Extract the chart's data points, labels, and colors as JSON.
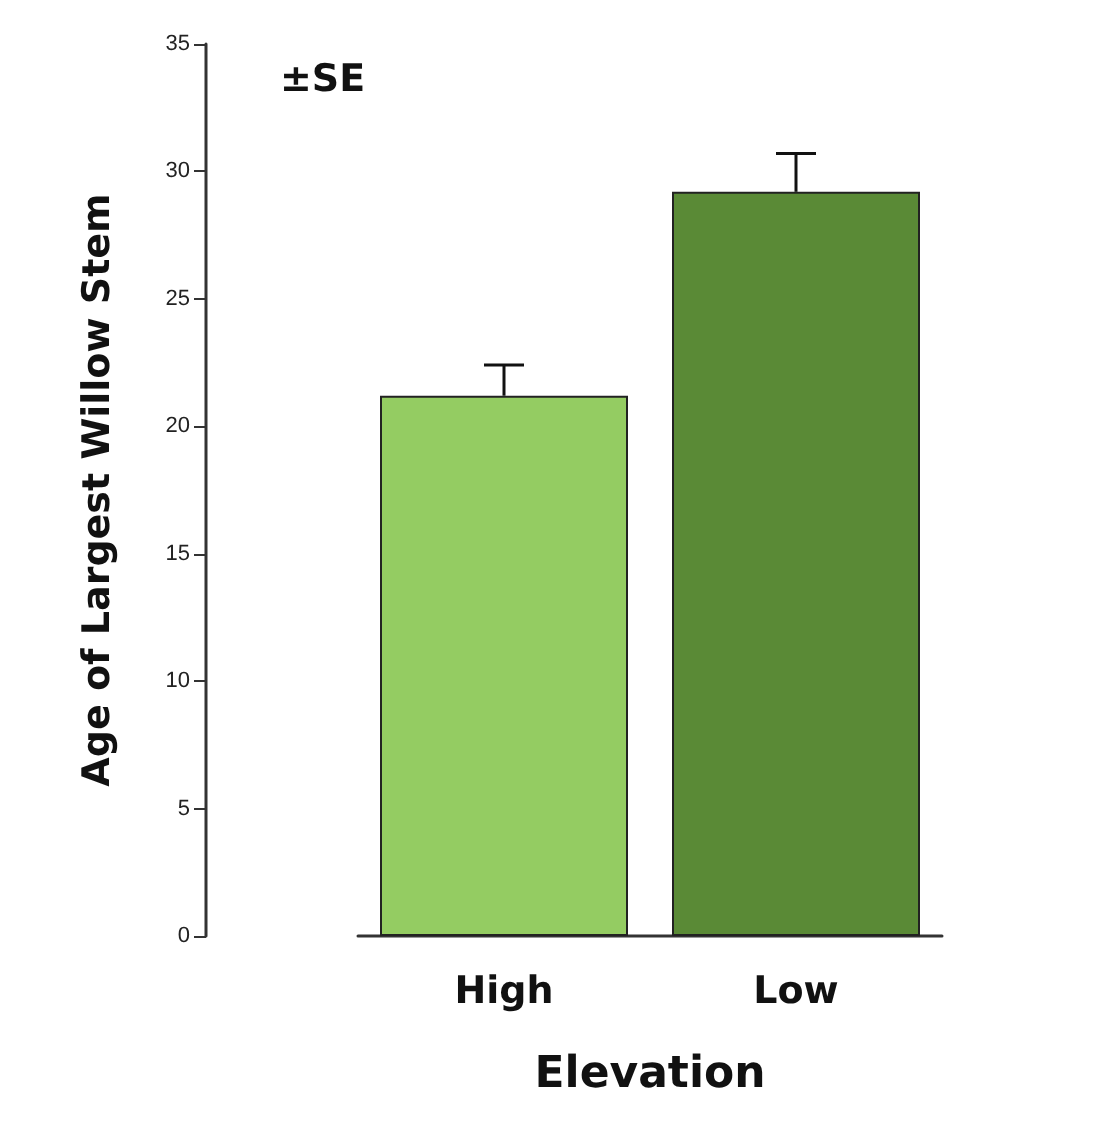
{
  "chart_data": {
    "type": "bar",
    "categories": [
      "High",
      "Low"
    ],
    "xlabel": "Elevation",
    "ylabel": "Age of Largest Willow Stem",
    "values": [
      21.2,
      29.2
    ],
    "colors": [
      "#94cc62",
      "#5a8a36"
    ],
    "errors": [
      1.2,
      1.5
    ],
    "ylim": [
      0,
      35
    ],
    "yticks": [
      0,
      5,
      10,
      15,
      20,
      25,
      30,
      35
    ],
    "grid": false,
    "annotations": [
      "±SE"
    ]
  }
}
